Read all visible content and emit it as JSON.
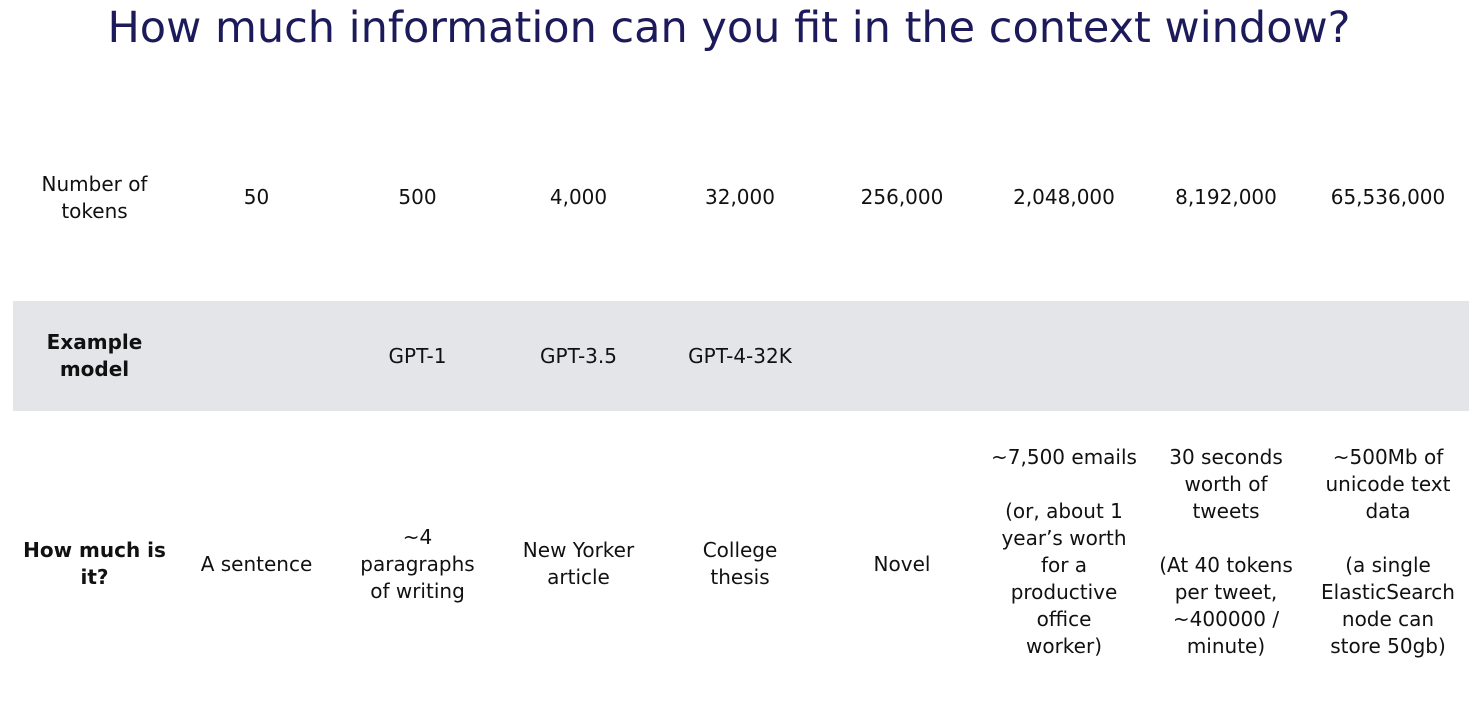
{
  "title": "How much information can you fit in the context window?",
  "rows": {
    "tokens": {
      "header": "Number of\ntokens",
      "values": [
        "50",
        "500",
        "4,000",
        "32,000",
        "256,000",
        "2,048,000",
        "8,192,000",
        "65,536,000"
      ]
    },
    "model": {
      "header": "Example\nmodel",
      "values": [
        "",
        "GPT-1",
        "GPT-3.5",
        "GPT-4-32K",
        "",
        "",
        "",
        ""
      ]
    },
    "amount": {
      "header": "How much is\nit?",
      "values": [
        "A sentence",
        "~4\nparagraphs\nof writing",
        "New Yorker\narticle",
        "College\nthesis",
        "Novel",
        "~7,500 emails\n\n(or, about 1\nyear’s worth\nfor a\nproductive\noffice\nworker)",
        "30 seconds\nworth of\ntweets\n\n(At 40 tokens\nper tweet,\n~400000 /\nminute)",
        "~500Mb of\nunicode text\ndata\n\n(a single\nElasticSearch\nnode can\nstore 50gb)"
      ]
    }
  }
}
